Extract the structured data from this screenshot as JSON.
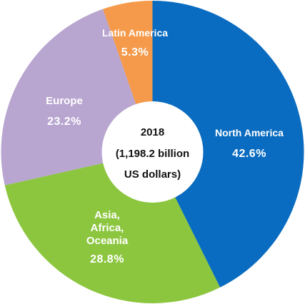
{
  "chart_data": {
    "type": "pie",
    "donut": true,
    "center_text": [
      "2018",
      "(1,198.2 billion",
      "US dollars)"
    ],
    "slices": [
      {
        "label": "North America",
        "label_lines": [
          "North America"
        ],
        "value": 42.6,
        "value_label": "42.6%",
        "color": "#0a6cc0"
      },
      {
        "label": "Asia, Africa, Oceania",
        "label_lines": [
          "Asia,",
          "Africa,",
          "Oceania"
        ],
        "value": 28.8,
        "value_label": "28.8%",
        "color": "#8cc63f"
      },
      {
        "label": "Europe",
        "label_lines": [
          "Europe"
        ],
        "value": 23.2,
        "value_label": "23.2%",
        "color": "#b8a5d0"
      },
      {
        "label": "Latin America",
        "label_lines": [
          "Latin America"
        ],
        "value": 5.3,
        "value_label": "5.3%",
        "color": "#f59a4a"
      }
    ]
  }
}
